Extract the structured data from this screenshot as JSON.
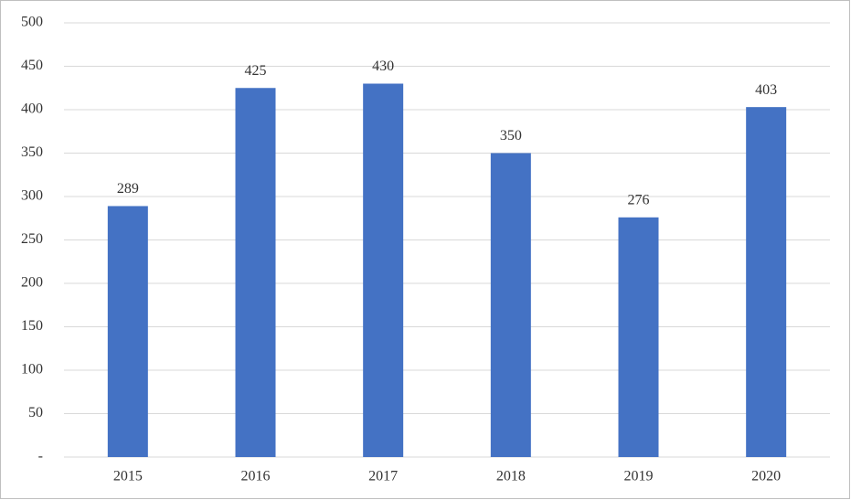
{
  "chart_data": {
    "type": "bar",
    "categories": [
      "2015",
      "2016",
      "2017",
      "2018",
      "2019",
      "2020"
    ],
    "values": [
      289,
      425,
      430,
      350,
      276,
      403
    ],
    "color": "#4472c4",
    "ylim": [
      0,
      500
    ],
    "yticks": [
      {
        "value": 0,
        "label": "-"
      },
      50,
      100,
      150,
      200,
      250,
      300,
      350,
      400,
      450,
      500
    ],
    "grid": true
  }
}
